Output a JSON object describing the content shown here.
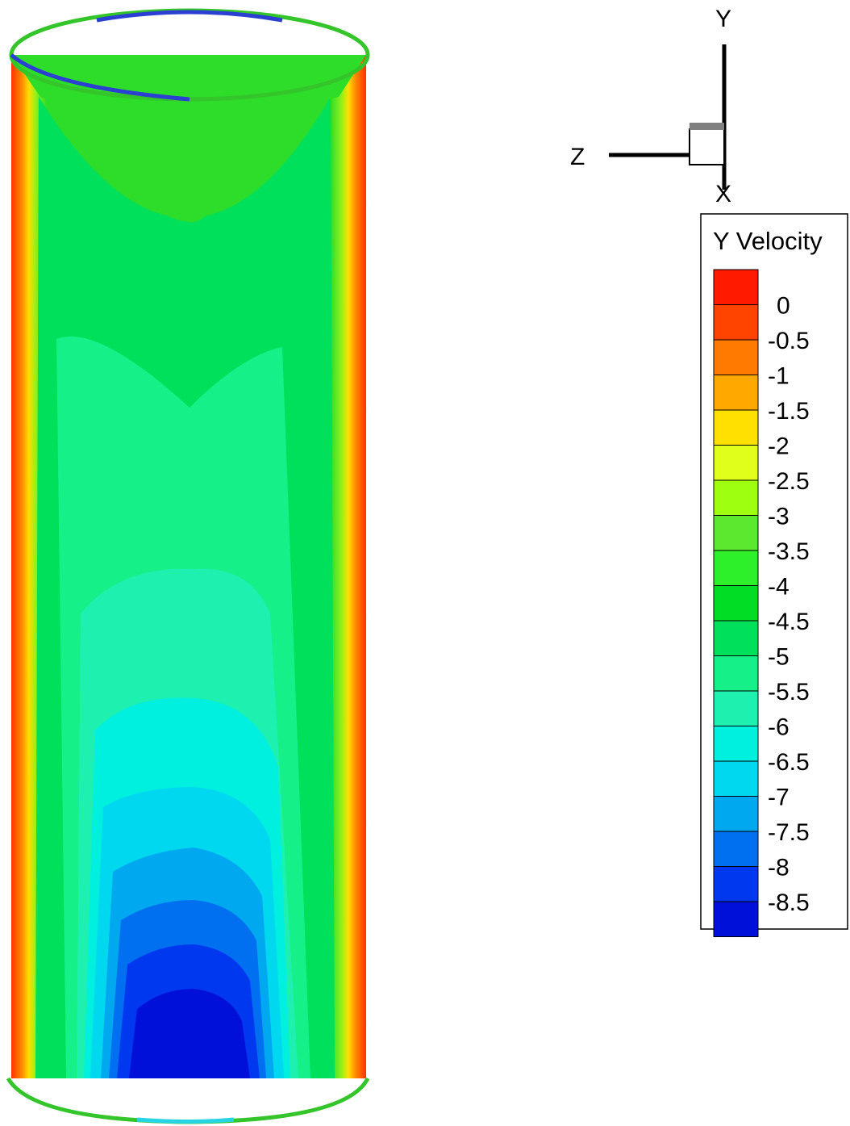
{
  "axes": {
    "y_label": "Y",
    "z_label": "Z",
    "x_label": "X"
  },
  "legend": {
    "title": "Y Velocity",
    "levels": [
      {
        "label": "0",
        "color": "#ff1a00"
      },
      {
        "label": "-0.5",
        "color": "#ff4400"
      },
      {
        "label": "-1",
        "color": "#ff7a00"
      },
      {
        "label": "-1.5",
        "color": "#ffa800"
      },
      {
        "label": "-2",
        "color": "#ffe000"
      },
      {
        "label": "-2.5",
        "color": "#e0ff1a"
      },
      {
        "label": "-3",
        "color": "#9eff10"
      },
      {
        "label": "-3.5",
        "color": "#5ce82e"
      },
      {
        "label": "-4",
        "color": "#2ef02a"
      },
      {
        "label": "-4.5",
        "color": "#00dd24"
      },
      {
        "label": "-5",
        "color": "#00e05a"
      },
      {
        "label": "-5.5",
        "color": "#16f088"
      },
      {
        "label": "-6",
        "color": "#1ef0b0"
      },
      {
        "label": "-6.5",
        "color": "#00f0e0"
      },
      {
        "label": "-7",
        "color": "#00d8f0"
      },
      {
        "label": "-7.5",
        "color": "#00a8f0"
      },
      {
        "label": "-8",
        "color": "#0070f0"
      },
      {
        "label": "-8.5",
        "color": "#0038f0"
      },
      {
        "label": "",
        "color": "#0010d8"
      }
    ]
  },
  "contour_field": {
    "quantity": "Y Velocity",
    "wall_value": 0,
    "core_min_value": -9,
    "top_cap_colors": [
      "#34c52a",
      "#2b3fd2"
    ],
    "bottom_cap_colors": [
      "#34c52a",
      "#26d4e4"
    ]
  }
}
